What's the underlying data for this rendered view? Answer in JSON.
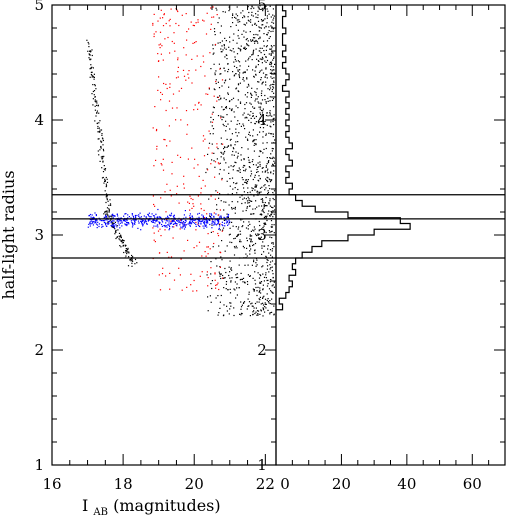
{
  "chart_data": [
    {
      "type": "scatter",
      "panel": "left",
      "xlabel_main": "I",
      "xlabel_sub": "AB",
      "xlabel_rest": " (magnitudes)",
      "ylabel": "half-light radius",
      "xlim": [
        16,
        22.3
      ],
      "ylim": [
        1,
        5
      ],
      "x_ticks": [
        "16",
        "18",
        "20",
        "22"
      ],
      "y_ticks": [
        "1",
        "2",
        "3",
        "4",
        "5"
      ],
      "inner_y_ticks": [
        "1",
        "2",
        "3",
        "4",
        "5"
      ],
      "grid": false,
      "series": [
        {
          "color": "#000000",
          "description_points": "all sources; dense toward faint end (I>20.5), stellar locus bends from r~4.7 at I~17.2 down to r~3.1 at I~17.5"
        },
        {
          "color": "#ff0000",
          "description_points": "sources between r~2.5 and r~5 at I 18.8-20.8"
        },
        {
          "color": "#0000ff",
          "description_points": "stellar locus selection: r 2.8-3.35, I 17.0-21.0"
        }
      ],
      "hlines": [
        2.8,
        3.14,
        3.35
      ]
    },
    {
      "type": "histogram",
      "panel": "right",
      "orientation": "horizontal",
      "xlim": [
        0,
        70
      ],
      "ylim": [
        1,
        5
      ],
      "x_ticks": [
        "20",
        "40",
        "60"
      ],
      "bin_edges": [
        2.35,
        2.4,
        2.45,
        2.5,
        2.55,
        2.6,
        2.65,
        2.7,
        2.75,
        2.8,
        2.85,
        2.9,
        2.95,
        3.0,
        3.05,
        3.1,
        3.15,
        3.2,
        3.25,
        3.3,
        3.35,
        3.4,
        3.45,
        3.5,
        3.55,
        3.6,
        3.65,
        3.7,
        3.75,
        3.8,
        3.85,
        3.9,
        3.95,
        4.0,
        4.05,
        4.1,
        4.15,
        4.2,
        4.25,
        4.3,
        4.35,
        4.4,
        4.45,
        4.5,
        4.55,
        4.6,
        4.65,
        4.7,
        4.75,
        4.8,
        4.85,
        4.9,
        4.95,
        5.0
      ],
      "counts": [
        2,
        1,
        3,
        4,
        5,
        4,
        6,
        5,
        6,
        8,
        11,
        14,
        22,
        30,
        41,
        38,
        22,
        12,
        8,
        6,
        4,
        5,
        3,
        4,
        3,
        5,
        4,
        3,
        5,
        4,
        3,
        4,
        3,
        4,
        3,
        4,
        3,
        4,
        2,
        3,
        4,
        3,
        2,
        3,
        2,
        3,
        2,
        2,
        3,
        2,
        2,
        3,
        2
      ],
      "hlines": [
        2.8,
        3.14,
        3.35
      ]
    }
  ]
}
